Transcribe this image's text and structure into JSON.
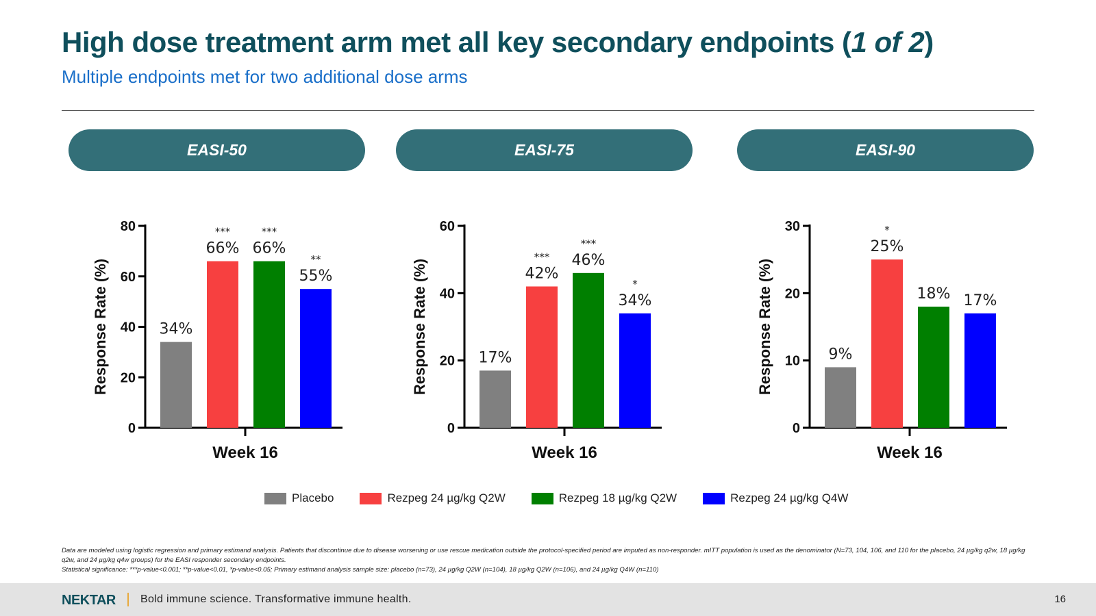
{
  "slide": {
    "title_main": "High dose treatment arm met all key secondary endpoints (",
    "title_italic": "1 of 2",
    "title_close": ")",
    "subtitle": "Multiple endpoints met for two additional dose arms",
    "page_number": "16"
  },
  "pills": [
    "EASI-50",
    "EASI-75",
    "EASI-90"
  ],
  "legend": [
    {
      "label": "Placebo",
      "color": "#808080"
    },
    {
      "label": "Rezpeg 24 µg/kg Q2W",
      "color": "#f74040"
    },
    {
      "label": "Rezpeg 18 µg/kg Q2W",
      "color": "#007f00"
    },
    {
      "label": "Rezpeg 24 µg/kg Q4W",
      "color": "#0000ff"
    }
  ],
  "chart_data": [
    {
      "type": "bar",
      "title": "EASI-50",
      "ylabel": "Response Rate (%)",
      "xlabel": "",
      "category": "Week 16",
      "ylim": [
        0,
        80
      ],
      "yticks": [
        0,
        20,
        40,
        60,
        80
      ],
      "series": [
        {
          "name": "Placebo",
          "value": 34,
          "label": "34%",
          "sig": ""
        },
        {
          "name": "Rezpeg 24 µg/kg Q2W",
          "value": 66,
          "label": "66%",
          "sig": "***"
        },
        {
          "name": "Rezpeg 18 µg/kg Q2W",
          "value": 66,
          "label": "66%",
          "sig": "***"
        },
        {
          "name": "Rezpeg 24 µg/kg Q4W",
          "value": 55,
          "label": "55%",
          "sig": "**"
        }
      ]
    },
    {
      "type": "bar",
      "title": "EASI-75",
      "ylabel": "Response Rate (%)",
      "xlabel": "",
      "category": "Week 16",
      "ylim": [
        0,
        60
      ],
      "yticks": [
        0,
        20,
        40,
        60
      ],
      "series": [
        {
          "name": "Placebo",
          "value": 17,
          "label": "17%",
          "sig": ""
        },
        {
          "name": "Rezpeg 24 µg/kg Q2W",
          "value": 42,
          "label": "42%",
          "sig": "***"
        },
        {
          "name": "Rezpeg 18 µg/kg Q2W",
          "value": 46,
          "label": "46%",
          "sig": "***"
        },
        {
          "name": "Rezpeg 24 µg/kg Q4W",
          "value": 34,
          "label": "34%",
          "sig": "*"
        }
      ]
    },
    {
      "type": "bar",
      "title": "EASI-90",
      "ylabel": "Response Rate (%)",
      "xlabel": "",
      "category": "Week 16",
      "ylim": [
        0,
        30
      ],
      "yticks": [
        0,
        10,
        20,
        30
      ],
      "series": [
        {
          "name": "Placebo",
          "value": 9,
          "label": "9%",
          "sig": ""
        },
        {
          "name": "Rezpeg 24 µg/kg Q2W",
          "value": 25,
          "label": "25%",
          "sig": "*"
        },
        {
          "name": "Rezpeg 18 µg/kg Q2W",
          "value": 18,
          "label": "18%",
          "sig": ""
        },
        {
          "name": "Rezpeg 24 µg/kg Q4W",
          "value": 17,
          "label": "17%",
          "sig": ""
        }
      ]
    }
  ],
  "footnote": {
    "line1": "Data are modeled using logistic regression and primary estimand analysis. Patients that discontinue due to disease worsening or use rescue medication outside the protocol-specified period are imputed as non-responder. mITT population is used as the denominator (N=73, 104, 106, and 110 for the placebo, 24 µg/kg q2w, 18 µg/kg q2w, and 24 µg/kg q4w groups) for the EASI responder secondary endpoints.",
    "line2": "Statistical significance: ***p-value<0.001; **p-value<0.01, *p-value<0.05; Primary estimand analysis sample size: placebo (n=73), 24 µg/kg Q2W (n=104), 18 µg/kg Q2W (n=106), and 24 µg/kg Q4W (n=110)"
  },
  "footer": {
    "logo": "NEKTAR",
    "tagline": "Bold immune science. Transformative immune health."
  }
}
